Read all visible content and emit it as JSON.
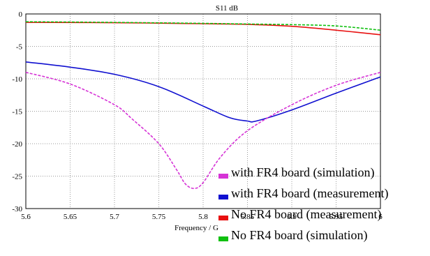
{
  "chart_data": {
    "type": "line",
    "title": "S11 dB",
    "xlabel": "Frequency / G",
    "ylabel": "",
    "xlim": [
      5.6,
      6.0
    ],
    "ylim": [
      -30,
      0
    ],
    "x_ticks": [
      "5.6",
      "5.65",
      "5.7",
      "5.75",
      "5.8",
      "5.85",
      "5.9",
      "5.95",
      "6"
    ],
    "y_ticks": [
      "0",
      "-5",
      "-10",
      "-15",
      "-20",
      "-25",
      "-30"
    ],
    "grid": true,
    "legend_position": "bottom-right",
    "series": [
      {
        "name": "with FR4 board (simulation)",
        "color": "#d633d6",
        "style": "dashed",
        "x": [
          5.6,
          5.65,
          5.7,
          5.72,
          5.75,
          5.77,
          5.78,
          5.79,
          5.8,
          5.82,
          5.85,
          5.9,
          5.95,
          6.0
        ],
        "y": [
          -9.0,
          -10.8,
          -14.0,
          -16.2,
          -20.0,
          -24.0,
          -26.2,
          -26.9,
          -26.0,
          -22.0,
          -18.0,
          -14.0,
          -11.0,
          -9.0
        ]
      },
      {
        "name": "with FR4 board (measurement)",
        "color": "#1010d0",
        "style": "solid",
        "x": [
          5.6,
          5.65,
          5.7,
          5.75,
          5.8,
          5.83,
          5.85,
          5.86,
          5.9,
          5.95,
          6.0
        ],
        "y": [
          -7.4,
          -8.2,
          -9.3,
          -11.2,
          -14.2,
          -16.0,
          -16.5,
          -16.5,
          -14.8,
          -12.2,
          -9.7
        ]
      },
      {
        "name": "No FR4 board (measurement)",
        "color": "#e81010",
        "style": "solid",
        "x": [
          5.6,
          5.7,
          5.8,
          5.85,
          5.9,
          5.95,
          6.0
        ],
        "y": [
          -1.3,
          -1.35,
          -1.5,
          -1.6,
          -1.9,
          -2.5,
          -3.2
        ]
      },
      {
        "name": "No FR4 board (simulation)",
        "color": "#10c010",
        "style": "dashed",
        "x": [
          5.6,
          5.7,
          5.8,
          5.85,
          5.9,
          5.95,
          6.0
        ],
        "y": [
          -1.2,
          -1.3,
          -1.45,
          -1.55,
          -1.65,
          -1.85,
          -2.5
        ]
      }
    ]
  }
}
